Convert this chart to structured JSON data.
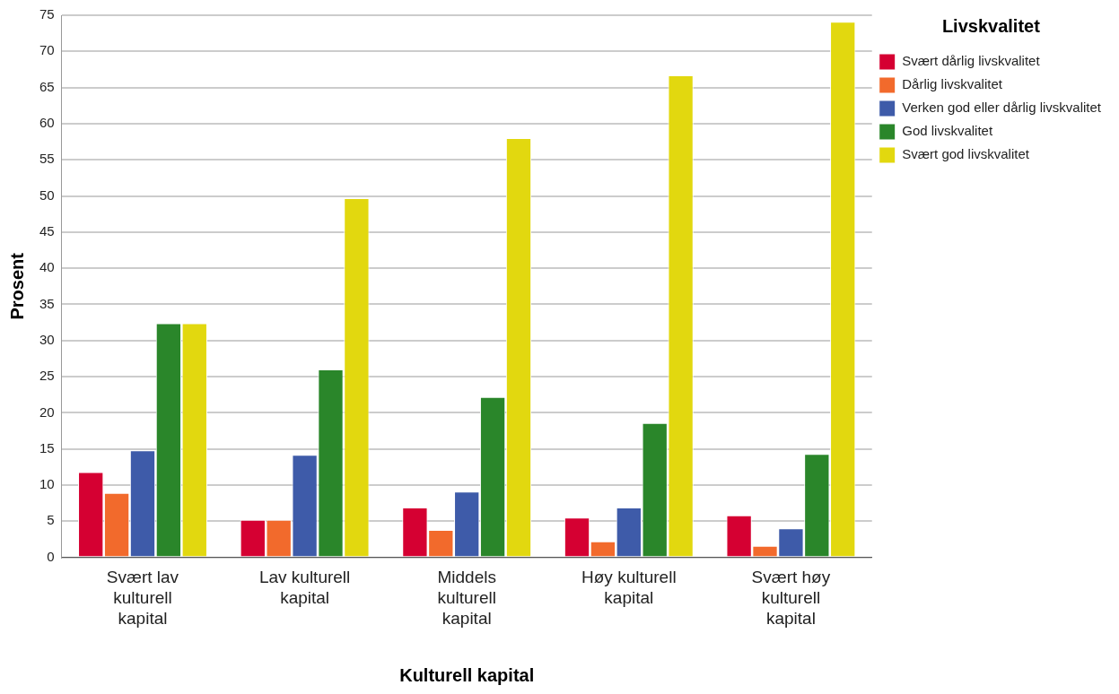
{
  "chart_data": {
    "type": "bar",
    "xlabel": "Kulturell kapital",
    "ylabel": "Prosent",
    "legend_title": "Livskvalitet",
    "categories": [
      "Svært lav kulturell kapital",
      "Lav kulturell kapital",
      "Middels kulturell kapital",
      "Høy kulturell kapital",
      "Svært høy kulturell kapital"
    ],
    "series": [
      {
        "name": "Svært dårlig livskvalitet",
        "color": "#d50032",
        "values": [
          11.8,
          5.2,
          6.9,
          5.5,
          5.8
        ]
      },
      {
        "name": "Dårlig livskvalitet",
        "color": "#f26a2c",
        "values": [
          8.9,
          5.2,
          3.8,
          2.2,
          1.6
        ]
      },
      {
        "name": "Verken god eller dårlig livskvalitet",
        "color": "#3e5ba9",
        "values": [
          14.8,
          14.2,
          9.1,
          6.9,
          4.0
        ]
      },
      {
        "name": "God livskvalitet",
        "color": "#2a862a",
        "values": [
          32.4,
          26.0,
          22.2,
          18.6,
          14.3
        ]
      },
      {
        "name": "Svært god livskvalitet",
        "color": "#e2d80f",
        "values": [
          32.4,
          49.7,
          58.0,
          66.7,
          74.1
        ]
      }
    ],
    "ylim": [
      0,
      75
    ],
    "yticks": [
      0,
      5,
      10,
      15,
      20,
      25,
      30,
      35,
      40,
      45,
      50,
      55,
      60,
      65,
      70,
      75
    ],
    "grid": "y",
    "legend": "top right"
  }
}
